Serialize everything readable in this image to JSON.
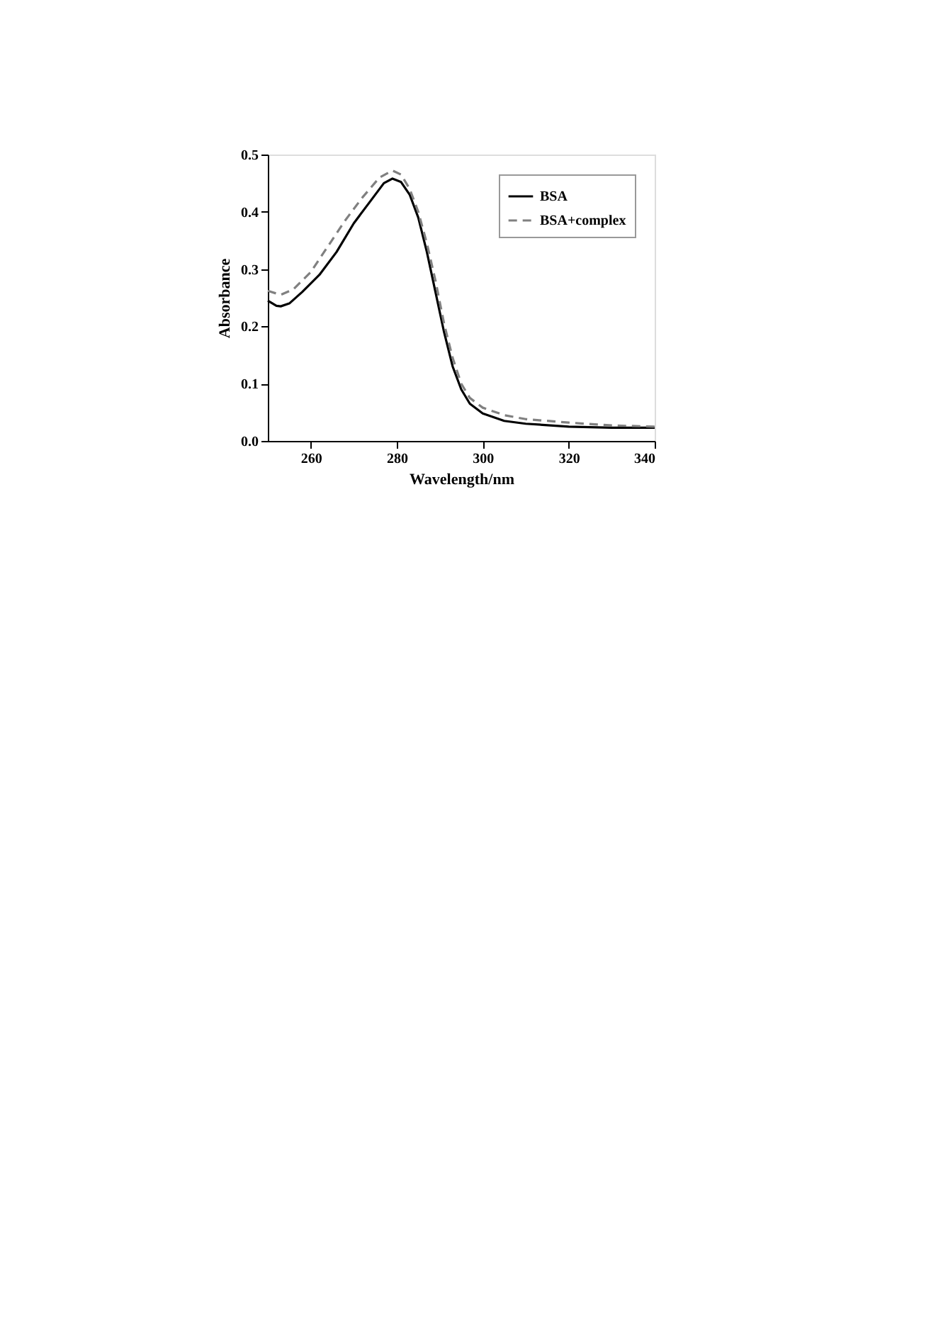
{
  "chart_data": {
    "type": "line",
    "xlabel": "Wavelength/nm",
    "ylabel": "Absorbance",
    "xlim": [
      250,
      340
    ],
    "ylim": [
      0,
      0.5
    ],
    "xticks": [
      260,
      280,
      300,
      320,
      340
    ],
    "yticks": [
      {
        "value": 0,
        "label": "0.0"
      },
      0.1,
      0.2,
      0.3,
      0.4,
      0.5
    ],
    "grid": false,
    "legend": "top right",
    "marker": "none",
    "series": [
      {
        "name": "BSA",
        "color": "#000000",
        "line_style": "solid",
        "x": [
          250,
          252,
          253,
          255,
          258,
          262,
          266,
          270,
          274,
          277,
          279,
          281,
          283,
          285,
          287,
          289,
          291,
          293,
          295,
          297,
          300,
          305,
          310,
          320,
          330,
          340
        ],
        "values": [
          0.245,
          0.236,
          0.235,
          0.24,
          0.26,
          0.29,
          0.33,
          0.38,
          0.42,
          0.45,
          0.458,
          0.452,
          0.43,
          0.39,
          0.33,
          0.26,
          0.19,
          0.13,
          0.09,
          0.065,
          0.048,
          0.035,
          0.03,
          0.025,
          0.023,
          0.023
        ]
      },
      {
        "name": "BSA+complex",
        "color": "#808080",
        "line_style": "dashed",
        "x": [
          250,
          253,
          256,
          260,
          264,
          268,
          272,
          276,
          279,
          281,
          283,
          285,
          287,
          289,
          291,
          293,
          295,
          297,
          300,
          305,
          310,
          320,
          330,
          340
        ],
        "values": [
          0.262,
          0.255,
          0.265,
          0.295,
          0.34,
          0.385,
          0.425,
          0.46,
          0.472,
          0.465,
          0.44,
          0.4,
          0.345,
          0.28,
          0.205,
          0.145,
          0.1,
          0.075,
          0.058,
          0.045,
          0.038,
          0.032,
          0.027,
          0.025
        ]
      }
    ]
  }
}
